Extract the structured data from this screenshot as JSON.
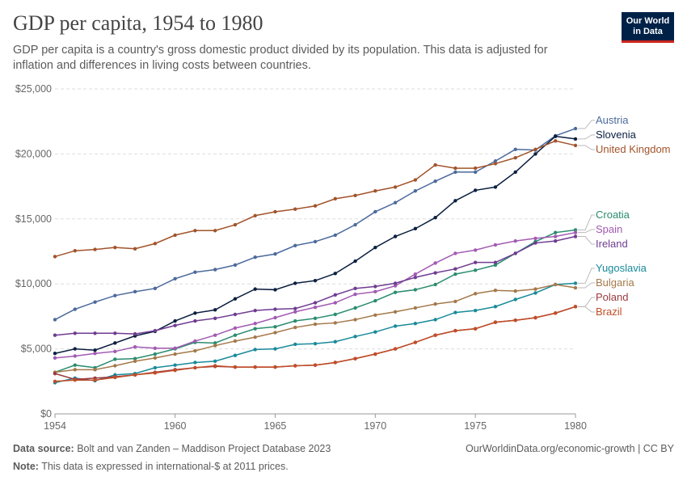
{
  "header": {
    "title": "GDP per capita, 1954 to 1980",
    "subtitle": "GDP per capita is a country's gross domestic product divided by its population. This data is adjusted for inflation and differences in living costs between countries.",
    "logo_line1": "Our World",
    "logo_line2": "in Data"
  },
  "footer": {
    "source_label": "Data source:",
    "source_text": "Bolt and van Zanden – Maddison Project Database 2023",
    "note_label": "Note:",
    "note_text": "This data is expressed in international-$ at 2011 prices.",
    "link_text": "OurWorldinData.org/economic-growth | CC BY"
  },
  "chart_data": {
    "type": "line",
    "title": "GDP per capita, 1954 to 1980",
    "xlim": [
      1954,
      1980
    ],
    "ylim": [
      0,
      25000
    ],
    "x_ticks": [
      1954,
      1960,
      1965,
      1970,
      1975,
      1980
    ],
    "y_ticks": [
      0,
      5000,
      10000,
      15000,
      20000,
      25000
    ],
    "y_tick_labels": [
      "$0",
      "$5,000",
      "$10,000",
      "$15,000",
      "$20,000",
      "$25,000"
    ],
    "grid": "horizontal-dashed",
    "legend": "right-end-labels",
    "x": [
      1954,
      1955,
      1956,
      1957,
      1958,
      1959,
      1960,
      1961,
      1962,
      1963,
      1964,
      1965,
      1966,
      1967,
      1968,
      1969,
      1970,
      1971,
      1972,
      1973,
      1974,
      1975,
      1976,
      1977,
      1978,
      1979,
      1980
    ],
    "series": [
      {
        "name": "Austria",
        "color": "#4c6a9c",
        "values": [
          7250,
          8050,
          8600,
          9100,
          9400,
          9650,
          10400,
          10900,
          11100,
          11450,
          12050,
          12300,
          12950,
          13250,
          13750,
          14550,
          15550,
          16250,
          17150,
          17900,
          18600,
          18600,
          19450,
          20350,
          20300,
          21400,
          21950
        ]
      },
      {
        "name": "Slovenia",
        "color": "#0b1f40",
        "values": [
          4650,
          5000,
          4900,
          5450,
          6000,
          6350,
          7150,
          7750,
          8000,
          8850,
          9600,
          9550,
          10050,
          10250,
          10800,
          11750,
          12800,
          13650,
          14250,
          15100,
          16400,
          17200,
          17450,
          18600,
          20000,
          21350,
          21150
        ]
      },
      {
        "name": "United Kingdom",
        "color": "#a2532a",
        "values": [
          12100,
          12550,
          12650,
          12800,
          12700,
          13100,
          13750,
          14100,
          14100,
          14550,
          15250,
          15550,
          15750,
          16000,
          16550,
          16800,
          17150,
          17450,
          18000,
          19150,
          18900,
          18900,
          19250,
          19700,
          20350,
          21000,
          20650
        ]
      },
      {
        "name": "Croatia",
        "color": "#2a8c6f",
        "values": [
          3200,
          3750,
          3550,
          4200,
          4250,
          4600,
          5000,
          5500,
          5450,
          6050,
          6550,
          6700,
          7150,
          7350,
          7650,
          8150,
          8700,
          9350,
          9550,
          9950,
          10750,
          11050,
          11450,
          12350,
          13250,
          13950,
          14150
        ]
      },
      {
        "name": "Spain",
        "color": "#a25ab3",
        "values": [
          4300,
          4450,
          4650,
          4800,
          5150,
          5050,
          5050,
          5600,
          6050,
          6600,
          6950,
          7400,
          7850,
          8200,
          8550,
          9200,
          9400,
          9850,
          10750,
          11600,
          12350,
          12600,
          13000,
          13300,
          13500,
          13650,
          13950
        ]
      },
      {
        "name": "Ireland",
        "color": "#6f3c91",
        "values": [
          6050,
          6200,
          6200,
          6200,
          6150,
          6400,
          6800,
          7150,
          7350,
          7650,
          7950,
          8050,
          8100,
          8550,
          9150,
          9650,
          9800,
          10050,
          10500,
          10850,
          11150,
          11650,
          11650,
          12350,
          13150,
          13300,
          13650
        ]
      },
      {
        "name": "Yugoslavia",
        "color": "#188a9a",
        "values": [
          2400,
          2750,
          2550,
          3000,
          3100,
          3550,
          3750,
          3950,
          4050,
          4500,
          4950,
          5000,
          5350,
          5400,
          5550,
          5950,
          6300,
          6750,
          6950,
          7250,
          7800,
          7950,
          8250,
          8800,
          9300,
          9950,
          10050
        ]
      },
      {
        "name": "Bulgaria",
        "color": "#a4794a",
        "values": [
          3200,
          3400,
          3400,
          3700,
          4050,
          4300,
          4600,
          4850,
          5250,
          5600,
          5900,
          6250,
          6650,
          6900,
          7000,
          7250,
          7600,
          7850,
          8150,
          8450,
          8650,
          9250,
          9500,
          9450,
          9600,
          9950,
          9700
        ]
      },
      {
        "name": "Poland",
        "color": "#9b3a3f",
        "values": [
          3100,
          2650,
          2750,
          2850,
          3000,
          3200,
          3400,
          3550,
          3650,
          3600,
          3600,
          3600,
          3700,
          3750,
          3950,
          4250,
          4600,
          5000,
          5500,
          6050,
          6400,
          6550,
          7050,
          7200,
          7400,
          7750,
          8250
        ]
      },
      {
        "name": "Brazil",
        "color": "#c14d27",
        "values": [
          2500,
          2600,
          2600,
          2800,
          3000,
          3150,
          3350,
          3550,
          3700,
          3600,
          3600,
          3600,
          3700,
          3750,
          3950,
          4250,
          4600,
          5000,
          5500,
          6050,
          6400,
          6550,
          7050,
          7200,
          7400,
          7750,
          8250
        ]
      }
    ]
  }
}
